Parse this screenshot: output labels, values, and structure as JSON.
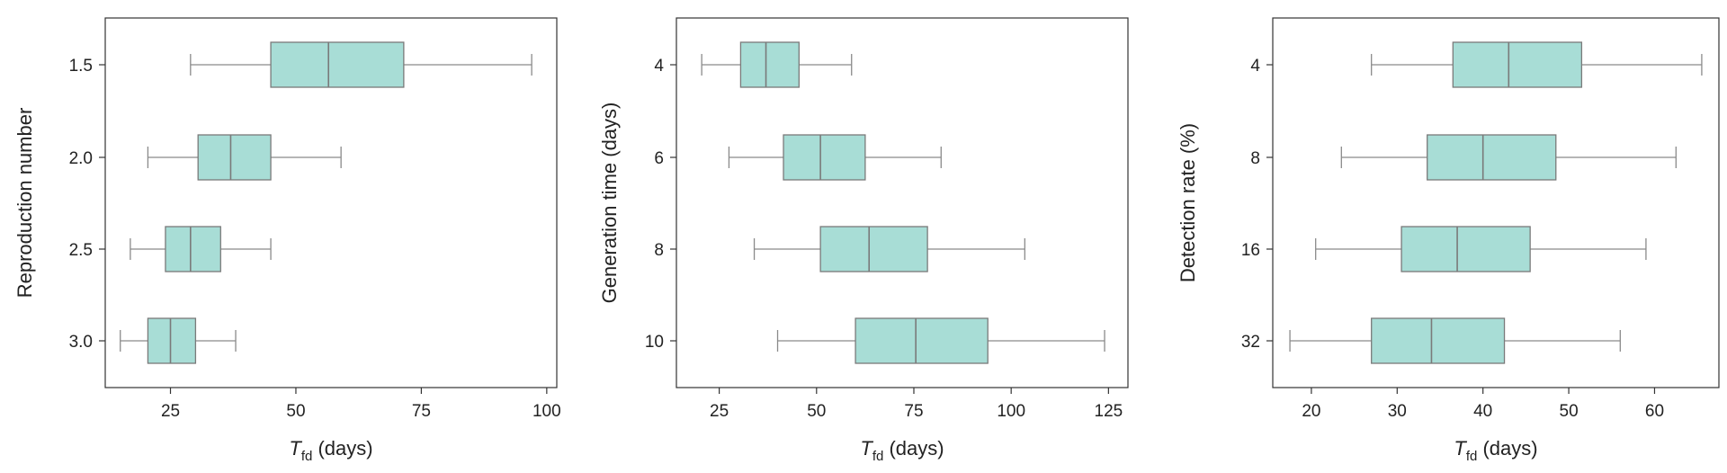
{
  "style": {
    "box_fill": "#a8ddd6",
    "box_stroke": "#7a7a7a",
    "whisker_color": "#8a8a8a",
    "frame_color": "#333333"
  },
  "chart_data": [
    {
      "type": "boxplot",
      "orientation": "horizontal",
      "ylabel": "Reproduction number",
      "xlabel_main": "T",
      "xlabel_sub": "fd",
      "xlabel_rest": " (days)",
      "xlim": [
        12,
        102
      ],
      "xticks": [
        25,
        50,
        75,
        100
      ],
      "xtick_labels": [
        "25",
        "50",
        "75",
        "100"
      ],
      "categories": [
        "1.5",
        "2.0",
        "2.5",
        "3.0"
      ],
      "boxes": [
        {
          "min": 29,
          "q1": 45,
          "median": 56.5,
          "q3": 71.5,
          "max": 97
        },
        {
          "min": 20.5,
          "q1": 30.5,
          "median": 37,
          "q3": 45,
          "max": 59
        },
        {
          "min": 17,
          "q1": 24,
          "median": 29,
          "q3": 35,
          "max": 45
        },
        {
          "min": 15,
          "q1": 20.5,
          "median": 25,
          "q3": 30,
          "max": 38
        }
      ]
    },
    {
      "type": "boxplot",
      "orientation": "horizontal",
      "ylabel": "Generation time (days)",
      "xlabel_main": "T",
      "xlabel_sub": "fd",
      "xlabel_rest": " (days)",
      "xlim": [
        14,
        130
      ],
      "xticks": [
        25,
        50,
        75,
        100,
        125
      ],
      "xtick_labels": [
        "25",
        "50",
        "75",
        "100",
        "125"
      ],
      "categories": [
        "4",
        "6",
        "8",
        "10"
      ],
      "boxes": [
        {
          "min": 20.5,
          "q1": 30.5,
          "median": 37,
          "q3": 45.5,
          "max": 59
        },
        {
          "min": 27.5,
          "q1": 41.5,
          "median": 51,
          "q3": 62.5,
          "max": 82
        },
        {
          "min": 34,
          "q1": 51,
          "median": 63.5,
          "q3": 78.5,
          "max": 103.5
        },
        {
          "min": 40,
          "q1": 60,
          "median": 75.5,
          "q3": 94,
          "max": 124
        }
      ]
    },
    {
      "type": "boxplot",
      "orientation": "horizontal",
      "ylabel": "Detection rate (%)",
      "xlabel_main": "T",
      "xlabel_sub": "fd",
      "xlabel_rest": " (days)",
      "xlim": [
        15.5,
        67.5
      ],
      "xticks": [
        20,
        30,
        40,
        50,
        60
      ],
      "xtick_labels": [
        "20",
        "30",
        "40",
        "50",
        "60"
      ],
      "categories": [
        "4",
        "8",
        "16",
        "32"
      ],
      "boxes": [
        {
          "min": 27,
          "q1": 36.5,
          "median": 43,
          "q3": 51.5,
          "max": 65.5
        },
        {
          "min": 23.5,
          "q1": 33.5,
          "median": 40,
          "q3": 48.5,
          "max": 62.5
        },
        {
          "min": 20.5,
          "q1": 30.5,
          "median": 37,
          "q3": 45.5,
          "max": 59
        },
        {
          "min": 17.5,
          "q1": 27,
          "median": 34,
          "q3": 42.5,
          "max": 56
        }
      ]
    }
  ]
}
